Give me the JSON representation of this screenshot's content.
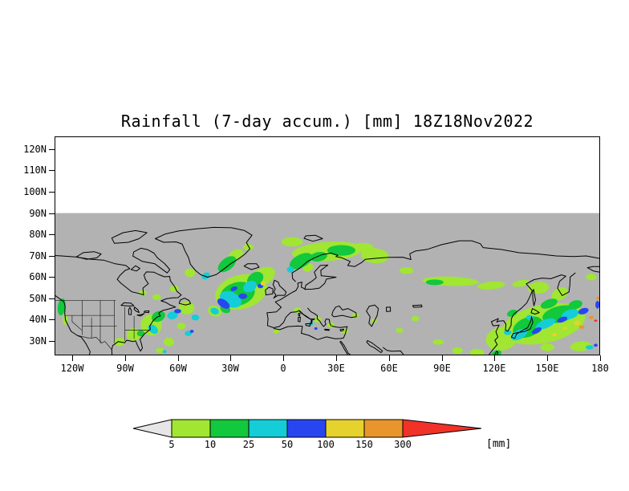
{
  "title": "Rainfall (7-day accum.) [mm] 18Z18Nov2022",
  "chart_data": {
    "type": "heatmap",
    "subtype": "lat-lon precipitation map",
    "title": "Rainfall (7-day accum.) [mm] 18Z18Nov2022",
    "units": "mm",
    "lon_range": [
      -130,
      180
    ],
    "lat_range": [
      23.2,
      126
    ],
    "data_lat_max": 90,
    "grid": false,
    "background_color": "#b2b2b2",
    "lon_ticks": {
      "values": [
        -120,
        -90,
        -60,
        -30,
        0,
        30,
        60,
        90,
        120,
        150,
        180
      ],
      "labels": [
        "120W",
        "90W",
        "60W",
        "30W",
        "0",
        "30E",
        "60E",
        "90E",
        "120E",
        "150E",
        "180"
      ]
    },
    "lat_ticks": {
      "values": [
        120,
        110,
        100,
        90,
        80,
        70,
        60,
        50,
        40,
        30
      ],
      "labels": [
        "120N",
        "110N",
        "100N",
        "90N",
        "80N",
        "70N",
        "60N",
        "50N",
        "40N",
        "30N"
      ]
    },
    "colorbar": {
      "levels": [
        5,
        10,
        25,
        50,
        100,
        150,
        300
      ],
      "labels": [
        "5",
        "10",
        "25",
        "50",
        "100",
        "150",
        "300"
      ],
      "unit_label": "[mm]",
      "below_color": "#e6e6e6",
      "segment_colors": [
        "#a0e632",
        "#12c83c",
        "#14cdd7",
        "#2846f0",
        "#e6d22d",
        "#e8952d"
      ],
      "above_color": "#f03228",
      "position": "bottom"
    },
    "palette": {
      "g1": "#a0e632",
      "g2": "#12c83c",
      "c": "#14cdd7",
      "b": "#2846f0",
      "y": "#e6d22d",
      "o": "#e8952d",
      "r": "#f03228"
    },
    "level_order": [
      "g1",
      "g2",
      "c",
      "b",
      "y",
      "o",
      "r"
    ],
    "features_format": [
      "lon",
      "lat",
      "rx_deg",
      "ry_deg",
      "rotation_deg",
      "intensity_color_key"
    ],
    "features": [
      [
        -24,
        53,
        15,
        8,
        -15,
        "g1"
      ],
      [
        -12,
        60,
        8,
        4,
        -30,
        "g1"
      ],
      [
        -39,
        44,
        4,
        2.5,
        20,
        "g1"
      ],
      [
        -26,
        52,
        10,
        5.5,
        -15,
        "g2"
      ],
      [
        -16,
        59,
        5,
        3,
        -35,
        "g2"
      ],
      [
        -33,
        45,
        3,
        1.8,
        25,
        "g2"
      ],
      [
        -30,
        49.5,
        6.5,
        3.5,
        25,
        "c"
      ],
      [
        -19,
        55.5,
        4,
        2.5,
        -30,
        "c"
      ],
      [
        -39,
        44,
        2.5,
        1.5,
        20,
        "c"
      ],
      [
        -34,
        47.5,
        4,
        1.8,
        35,
        "b"
      ],
      [
        -23,
        51,
        2.5,
        1.3,
        0,
        "b"
      ],
      [
        -28,
        54.5,
        2,
        1,
        -20,
        "b"
      ],
      [
        -11.5,
        57,
        1.4,
        1,
        0,
        "y"
      ],
      [
        -13,
        55.8,
        1.7,
        1.1,
        0,
        "b"
      ],
      [
        -32,
        66,
        6,
        2.8,
        -38,
        "g2"
      ],
      [
        -27,
        70.5,
        4.5,
        2.2,
        -25,
        "g1"
      ],
      [
        -53,
        62,
        3,
        2,
        0,
        "g1"
      ],
      [
        -20,
        74,
        3,
        1.5,
        0,
        "g1"
      ],
      [
        -44,
        60.5,
        2.5,
        1.5,
        -30,
        "c"
      ],
      [
        25,
        72,
        20,
        4.5,
        -4,
        "g1"
      ],
      [
        10,
        67.5,
        7,
        3,
        -28,
        "g2"
      ],
      [
        33,
        72.5,
        8,
        2.5,
        0,
        "g2"
      ],
      [
        52,
        70,
        8,
        3.5,
        5,
        "g1"
      ],
      [
        5,
        76.5,
        6,
        2.2,
        0,
        "g1"
      ],
      [
        20,
        69.5,
        5,
        2.2,
        -10,
        "g2"
      ],
      [
        4,
        63.5,
        2,
        1.4,
        0,
        "c"
      ],
      [
        14,
        64.5,
        3,
        2,
        -20,
        "g1"
      ],
      [
        45,
        74,
        6,
        2,
        0,
        "g1"
      ],
      [
        95,
        58,
        16,
        2.2,
        2,
        "g1"
      ],
      [
        86,
        57.5,
        5,
        1.3,
        0,
        "g2"
      ],
      [
        118,
        56,
        8,
        1.8,
        -5,
        "g1"
      ],
      [
        70,
        63,
        4,
        1.6,
        0,
        "g1"
      ],
      [
        135,
        57,
        5,
        1.5,
        -10,
        "g1"
      ],
      [
        -75,
        37.5,
        6,
        5,
        -20,
        "g1"
      ],
      [
        -71,
        41.5,
        4,
        2.4,
        -25,
        "g2"
      ],
      [
        -74,
        35.5,
        3.2,
        1.8,
        40,
        "c"
      ],
      [
        -63,
        42,
        3,
        1.8,
        -10,
        "c"
      ],
      [
        -60,
        44,
        2,
        1,
        0,
        "b"
      ],
      [
        -55,
        45.5,
        4.5,
        3,
        0,
        "g1"
      ],
      [
        -50,
        41,
        2.2,
        1.4,
        0,
        "c"
      ],
      [
        -85,
        33,
        4,
        3,
        0,
        "g1"
      ],
      [
        -81,
        33.5,
        2.2,
        1.4,
        0,
        "g2"
      ],
      [
        -93,
        29.5,
        3,
        2,
        0,
        "g1"
      ],
      [
        -54,
        33.5,
        2,
        1.2,
        0,
        "c"
      ],
      [
        -52,
        34.5,
        1.1,
        0.7,
        0,
        "b"
      ],
      [
        -65,
        29.5,
        3,
        2,
        0,
        "g1"
      ],
      [
        -126,
        46,
        2.2,
        4,
        8,
        "g2"
      ],
      [
        -124,
        40,
        1.4,
        2.5,
        5,
        "g1"
      ],
      [
        -62,
        54.5,
        2.5,
        1.6,
        0,
        "g1"
      ],
      [
        -70,
        25.5,
        2.5,
        1.2,
        0,
        "g1"
      ],
      [
        -67.5,
        25,
        1.2,
        0.8,
        0,
        "c"
      ],
      [
        -80,
        52.5,
        2.2,
        1.3,
        0,
        "g1"
      ],
      [
        -72,
        50.5,
        2.4,
        1.4,
        0,
        "g1"
      ],
      [
        -58,
        37,
        2.5,
        1.5,
        0,
        "g1"
      ],
      [
        8,
        44.5,
        2,
        1.3,
        0,
        "g1"
      ],
      [
        19.5,
        40,
        2,
        1.4,
        0,
        "g1"
      ],
      [
        15.5,
        38,
        1.3,
        0.9,
        0,
        "c"
      ],
      [
        27,
        37.5,
        2,
        1.2,
        0,
        "g1"
      ],
      [
        -4,
        34.5,
        1.8,
        1,
        0,
        "g1"
      ],
      [
        35,
        34.5,
        2,
        1.2,
        0,
        "g1"
      ],
      [
        41,
        42,
        2,
        1.2,
        0,
        "g1"
      ],
      [
        51.5,
        39.5,
        1.6,
        1,
        0,
        "g1"
      ],
      [
        18.5,
        35.8,
        0.9,
        0.6,
        0,
        "b"
      ],
      [
        75,
        40.5,
        2.2,
        1.2,
        0,
        "g1"
      ],
      [
        88,
        29.5,
        3.2,
        1.2,
        0,
        "g1"
      ],
      [
        66,
        35,
        2,
        1.2,
        0,
        "g1"
      ],
      [
        148,
        38,
        24,
        9,
        -12,
        "g1"
      ],
      [
        124,
        31,
        9,
        5.5,
        -10,
        "g1"
      ],
      [
        139,
        36.5,
        9,
        4.5,
        -22,
        "g2"
      ],
      [
        157,
        42.5,
        10,
        3.8,
        -14,
        "g2"
      ],
      [
        134,
        33,
        5,
        2.2,
        -28,
        "c"
      ],
      [
        149,
        38,
        6,
        2,
        -22,
        "c"
      ],
      [
        163,
        42.5,
        5,
        2.2,
        -18,
        "c"
      ],
      [
        144,
        34.8,
        3,
        1.2,
        -28,
        "b"
      ],
      [
        158.5,
        40,
        3,
        1.2,
        -20,
        "b"
      ],
      [
        170.5,
        44,
        3,
        1.4,
        -18,
        "b"
      ],
      [
        167,
        38.5,
        2,
        1,
        -20,
        "y"
      ],
      [
        169.5,
        36.5,
        1.5,
        0.8,
        0,
        "o"
      ],
      [
        154,
        33,
        1.5,
        0.8,
        0,
        "y"
      ],
      [
        175,
        41,
        1.3,
        0.8,
        0,
        "o"
      ],
      [
        177.5,
        39.5,
        0.9,
        0.5,
        0,
        "r"
      ],
      [
        137,
        35.5,
        4,
        1.8,
        -38,
        "g2"
      ],
      [
        127.5,
        34,
        2.2,
        1.2,
        0,
        "c"
      ],
      [
        157,
        52,
        5,
        2.8,
        -30,
        "g1"
      ],
      [
        151,
        47.5,
        5,
        2,
        -20,
        "g2"
      ],
      [
        145,
        55,
        6,
        2.8,
        -5,
        "g1"
      ],
      [
        178.5,
        47,
        1.2,
        1.8,
        0,
        "b"
      ],
      [
        178.8,
        50,
        1,
        0.8,
        0,
        "o"
      ],
      [
        169,
        27.5,
        6,
        2.3,
        -5,
        "g1"
      ],
      [
        174,
        27,
        2.2,
        1,
        0,
        "c"
      ],
      [
        177.5,
        28,
        1.1,
        0.7,
        0,
        "b"
      ],
      [
        150,
        27,
        4,
        1.8,
        0,
        "g1"
      ],
      [
        121,
        24,
        3,
        1.5,
        -20,
        "g2"
      ],
      [
        110,
        24.5,
        4,
        1.8,
        0,
        "g1"
      ],
      [
        99,
        25.5,
        3,
        1.5,
        0,
        "g1"
      ],
      [
        160,
        36,
        1.3,
        0.7,
        0,
        "y"
      ],
      [
        130,
        43,
        3,
        1.5,
        -20,
        "g2"
      ],
      [
        140,
        41,
        2,
        1.2,
        0,
        "c"
      ],
      [
        175,
        60,
        3,
        1.6,
        0,
        "g1"
      ],
      [
        166,
        47,
        4,
        2,
        -15,
        "g2"
      ]
    ]
  }
}
